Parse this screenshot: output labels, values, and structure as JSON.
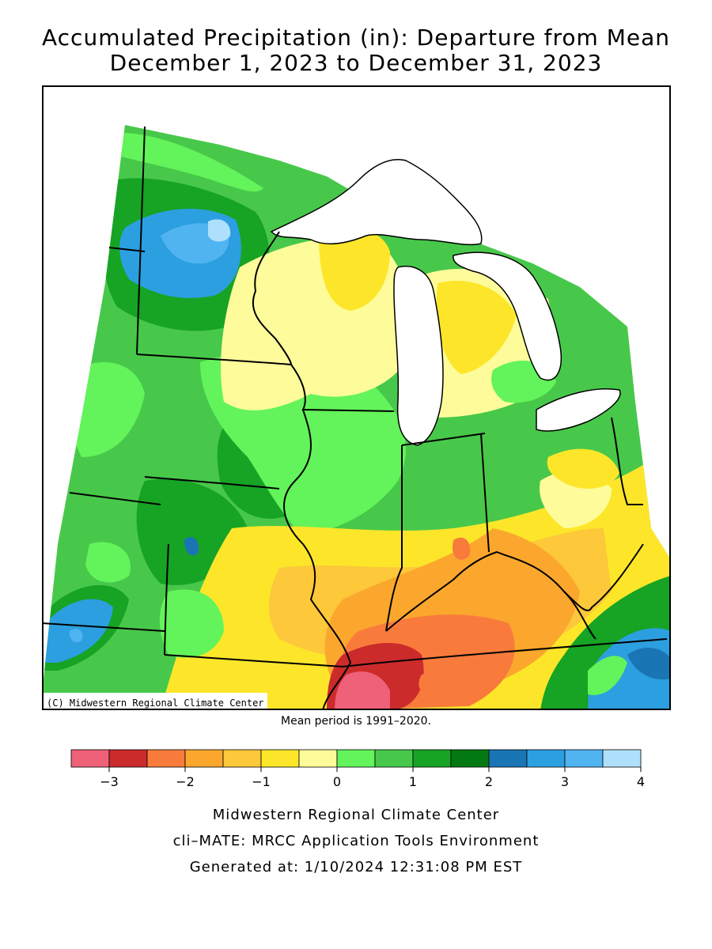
{
  "title_line1": "Accumulated Precipitation (in): Departure from Mean",
  "title_line2": "December 1, 2023 to December 31, 2023",
  "copyright": "(C) Midwestern Regional Climate Center",
  "mean_period": "Mean period is 1991–2020.",
  "legend": {
    "colors": [
      "#ef6079",
      "#cc2b2b",
      "#f97b3c",
      "#fba72e",
      "#fdc83a",
      "#fde62a",
      "#fefc9a",
      "#62f45a",
      "#48c84a",
      "#17a324",
      "#037a11",
      "#1a75b5",
      "#2c9fe0",
      "#50b4f0",
      "#aee0fb"
    ],
    "tick_labels": [
      "−3",
      "−2",
      "−1",
      "0",
      "1",
      "2",
      "3",
      "4"
    ]
  },
  "footer": {
    "line1": "Midwestern Regional Climate Center",
    "line2": "cli–MATE: MRCC Application Tools Environment",
    "line3": "Generated at: 1/10/2024 12:31:08 PM EST"
  }
}
